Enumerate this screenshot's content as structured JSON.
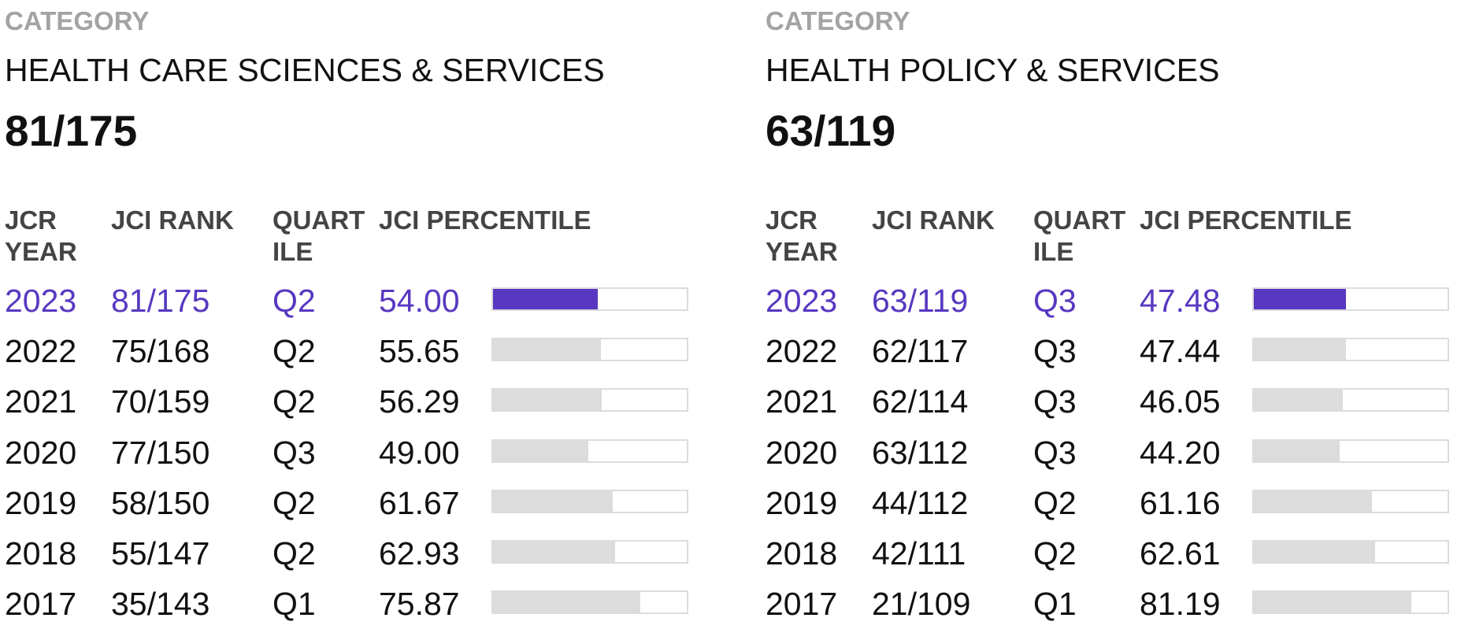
{
  "panels": [
    {
      "category_label": "CATEGORY",
      "category_name": "HEALTH CARE SCIENCES & SERVICES",
      "category_rank": "81/175",
      "headers": {
        "year": "JCR\nYEAR",
        "rank": "JCI RANK",
        "quartile": "QUART\nILE",
        "percentile": "JCI PERCENTILE"
      },
      "rows": [
        {
          "year": "2023",
          "rank": "81/175",
          "quartile": "Q2",
          "percentile": "54.00",
          "current": true
        },
        {
          "year": "2022",
          "rank": "75/168",
          "quartile": "Q2",
          "percentile": "55.65",
          "current": false
        },
        {
          "year": "2021",
          "rank": "70/159",
          "quartile": "Q2",
          "percentile": "56.29",
          "current": false
        },
        {
          "year": "2020",
          "rank": "77/150",
          "quartile": "Q3",
          "percentile": "49.00",
          "current": false
        },
        {
          "year": "2019",
          "rank": "58/150",
          "quartile": "Q2",
          "percentile": "61.67",
          "current": false
        },
        {
          "year": "2018",
          "rank": "55/147",
          "quartile": "Q2",
          "percentile": "62.93",
          "current": false
        },
        {
          "year": "2017",
          "rank": "35/143",
          "quartile": "Q1",
          "percentile": "75.87",
          "current": false
        }
      ]
    },
    {
      "category_label": "CATEGORY",
      "category_name": "HEALTH POLICY & SERVICES",
      "category_rank": "63/119",
      "headers": {
        "year": "JCR\nYEAR",
        "rank": "JCI RANK",
        "quartile": "QUART\nILE",
        "percentile": "JCI PERCENTILE"
      },
      "rows": [
        {
          "year": "2023",
          "rank": "63/119",
          "quartile": "Q3",
          "percentile": "47.48",
          "current": true
        },
        {
          "year": "2022",
          "rank": "62/117",
          "quartile": "Q3",
          "percentile": "47.44",
          "current": false
        },
        {
          "year": "2021",
          "rank": "62/114",
          "quartile": "Q3",
          "percentile": "46.05",
          "current": false
        },
        {
          "year": "2020",
          "rank": "63/112",
          "quartile": "Q3",
          "percentile": "44.20",
          "current": false
        },
        {
          "year": "2019",
          "rank": "44/112",
          "quartile": "Q2",
          "percentile": "61.16",
          "current": false
        },
        {
          "year": "2018",
          "rank": "42/111",
          "quartile": "Q2",
          "percentile": "62.61",
          "current": false
        },
        {
          "year": "2017",
          "rank": "21/109",
          "quartile": "Q1",
          "percentile": "81.19",
          "current": false
        }
      ]
    }
  ],
  "colors": {
    "accent": "#5838c1",
    "bar_track": "#dcdcdc",
    "label_gray": "#a3a3a3",
    "header_gray": "#444444"
  }
}
